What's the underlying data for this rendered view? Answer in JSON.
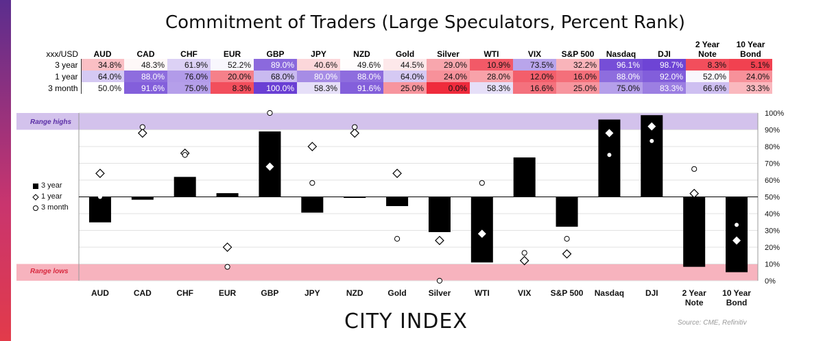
{
  "title": "Commitment of Traders (Large Speculators, Percent Rank)",
  "table": {
    "corner_label": "xxx/USD",
    "headers": [
      "AUD",
      "CAD",
      "CHF",
      "EUR",
      "GBP",
      "JPY",
      "NZD",
      "Gold",
      "Silver",
      "WTI",
      "VIX",
      "S&P 500",
      "Nasdaq",
      "DJI",
      "2 Year\nNote",
      "10 Year\nBond"
    ],
    "rows": [
      {
        "label": "3 year",
        "values": [
          "34.8%",
          "48.3%",
          "61.9%",
          "52.2%",
          "89.0%",
          "40.6%",
          "49.6%",
          "44.5%",
          "29.0%",
          "10.9%",
          "73.5%",
          "32.2%",
          "96.1%",
          "98.7%",
          "8.3%",
          "5.1%"
        ]
      },
      {
        "label": "1 year",
        "values": [
          "64.0%",
          "88.0%",
          "76.0%",
          "20.0%",
          "68.0%",
          "80.0%",
          "88.0%",
          "64.0%",
          "24.0%",
          "28.0%",
          "12.0%",
          "16.0%",
          "88.0%",
          "92.0%",
          "52.0%",
          "24.0%"
        ]
      },
      {
        "label": "3 month",
        "values": [
          "50.0%",
          "91.6%",
          "75.0%",
          "8.3%",
          "100.0%",
          "58.3%",
          "91.6%",
          "25.0%",
          "0.0%",
          "58.3%",
          "16.6%",
          "25.0%",
          "75.0%",
          "83.3%",
          "66.6%",
          "33.3%"
        ]
      }
    ]
  },
  "chart_data": {
    "type": "bar",
    "categories": [
      "AUD",
      "CAD",
      "CHF",
      "EUR",
      "GBP",
      "JPY",
      "NZD",
      "Gold",
      "Silver",
      "WTI",
      "VIX",
      "S&P 500",
      "Nasdaq",
      "DJI",
      "2 Year\nNote",
      "10 Year\nBond"
    ],
    "baseline": 50,
    "ylim": [
      0,
      100
    ],
    "yticks": [
      "0%",
      "10%",
      "20%",
      "30%",
      "40%",
      "50%",
      "60%",
      "70%",
      "80%",
      "90%",
      "100%"
    ],
    "series": [
      {
        "name": "3 year",
        "marker": "bar",
        "values": [
          34.8,
          48.3,
          61.9,
          52.2,
          89.0,
          40.6,
          49.6,
          44.5,
          29.0,
          10.9,
          73.5,
          32.2,
          96.1,
          98.7,
          8.3,
          5.1
        ]
      },
      {
        "name": "1 year",
        "marker": "diamond",
        "values": [
          64.0,
          88.0,
          76.0,
          20.0,
          68.0,
          80.0,
          88.0,
          64.0,
          24.0,
          28.0,
          12.0,
          16.0,
          88.0,
          92.0,
          52.0,
          24.0
        ]
      },
      {
        "name": "3 month",
        "marker": "circle",
        "values": [
          50.0,
          91.6,
          75.0,
          8.3,
          100.0,
          58.3,
          91.6,
          25.0,
          0.0,
          58.3,
          16.6,
          25.0,
          75.0,
          83.3,
          66.6,
          33.3
        ]
      }
    ],
    "range_high": {
      "label": "Range highs",
      "from": 90,
      "to": 100,
      "color": "#d3c2ec"
    },
    "range_low": {
      "label": "Range lows",
      "from": 0,
      "to": 10,
      "color": "#f7b3be"
    }
  },
  "legend": [
    "3 year",
    "1 year",
    "3 month"
  ],
  "brand": "CITY INDEX",
  "source": "Source: CME, Refinitiv",
  "colors": {
    "high": "#6a3fd4",
    "low": "#ef2b3c",
    "mid": "#ffffff"
  }
}
